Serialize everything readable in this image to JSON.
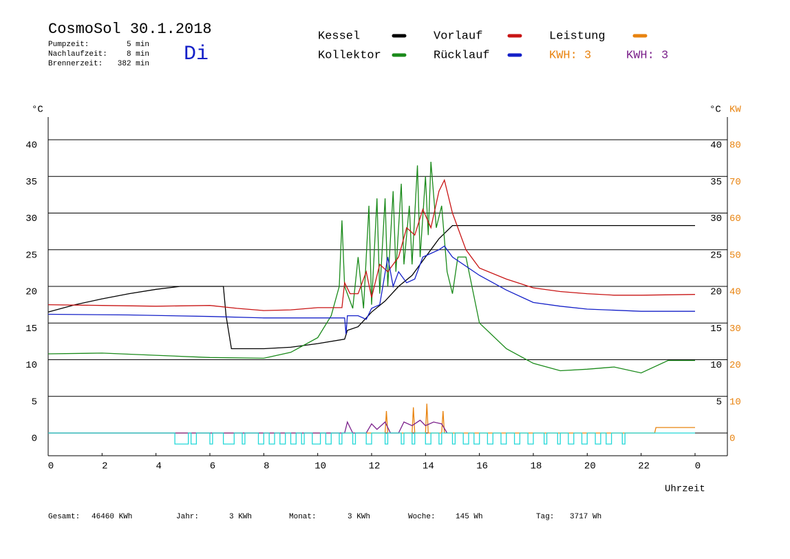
{
  "chart_data": {
    "type": "line",
    "title": "CosmoSol 30.1.2018",
    "day": "Di",
    "stats": [
      {
        "label": "Pumpzeit:",
        "value": "5 min"
      },
      {
        "label": "Nachlaufzeit:",
        "value": "8 min"
      },
      {
        "label": "Brennerzeit:",
        "value": "382 min"
      }
    ],
    "y_unit": "°C",
    "y2_unit": "KW",
    "x_label": "Uhrzeit",
    "kwh_labels": [
      {
        "text": "KWH: 3",
        "color": "#e8830f"
      },
      {
        "text": "KWH: 3",
        "color": "#7a1f8a"
      }
    ],
    "xlim": [
      0,
      25.2
    ],
    "xticks": [
      0,
      2,
      4,
      6,
      8,
      10,
      12,
      14,
      16,
      18,
      20,
      22,
      {
        "value": 24,
        "label": "0"
      }
    ],
    "ylim": [
      -3.1,
      43.1
    ],
    "yticks": [
      0,
      5,
      10,
      15,
      20,
      25,
      30,
      35,
      40
    ],
    "yticks_right": [
      5,
      10,
      15,
      20,
      25,
      30,
      35,
      40
    ],
    "y2lim": [
      -6.2,
      86.2
    ],
    "y2ticks": [
      0,
      10,
      20,
      30,
      40,
      50,
      60,
      70,
      80
    ],
    "y2color": "#e8830f",
    "grid": true,
    "series": [
      {
        "name": "Kessel",
        "color": "#000000",
        "x": [
          0,
          1,
          2,
          3,
          4,
          4.9,
          6.5,
          6.6,
          6.8,
          8,
          9,
          10,
          11,
          11.1,
          11.5,
          12,
          12.5,
          13,
          13.5,
          14,
          14.5,
          15,
          24
        ],
        "values": [
          16.5,
          17.5,
          18.3,
          19.0,
          19.6,
          20,
          20,
          16,
          11.5,
          11.5,
          11.7,
          12.2,
          12.8,
          14,
          14.5,
          16.5,
          18,
          20,
          21.5,
          24,
          26.5,
          28.3,
          28.3
        ]
      },
      {
        "name": "Kollektor",
        "color": "#1a8a1a",
        "x": [
          0,
          2,
          4,
          6,
          8,
          9,
          10,
          10.5,
          10.8,
          10.9,
          11,
          11.3,
          11.5,
          11.7,
          11.9,
          12,
          12.2,
          12.3,
          12.5,
          12.6,
          12.8,
          12.9,
          13.1,
          13.2,
          13.4,
          13.5,
          13.7,
          13.8,
          14,
          14.1,
          14.2,
          14.4,
          14.6,
          14.8,
          15,
          15.2,
          15.5,
          16,
          17,
          18,
          19,
          20,
          21,
          22,
          23,
          24
        ],
        "values": [
          10.8,
          10.9,
          10.6,
          10.3,
          10.2,
          11,
          13,
          16,
          20,
          29,
          20,
          17,
          24,
          17,
          31,
          17.5,
          32,
          19,
          32,
          20,
          33,
          22,
          34,
          23,
          31,
          23,
          36.5,
          24,
          35,
          27,
          37,
          28,
          31,
          22,
          19,
          24,
          24,
          15,
          11.5,
          9.5,
          8.5,
          8.7,
          9.0,
          8.2,
          9.9,
          9.9
        ]
      },
      {
        "name": "Vorlauf",
        "color": "#c81414",
        "x": [
          0,
          2,
          4,
          6,
          7,
          8,
          9,
          10,
          10.9,
          11,
          11.2,
          11.5,
          11.8,
          12,
          12.3,
          12.6,
          13,
          13.3,
          13.6,
          13.9,
          14.2,
          14.5,
          14.7,
          15,
          15.5,
          16,
          17,
          18,
          19,
          20,
          21,
          22,
          24
        ],
        "values": [
          17.5,
          17.4,
          17.3,
          17.4,
          17.0,
          16.7,
          16.8,
          17.1,
          17.1,
          20.5,
          19,
          19,
          22,
          18.5,
          23,
          22,
          24,
          28,
          27,
          30.5,
          28,
          33,
          34.5,
          30,
          25,
          22.5,
          21,
          19.8,
          19.3,
          19.0,
          18.8,
          18.8,
          18.9
        ]
      },
      {
        "name": "Rücklauf",
        "color": "#1420c8",
        "x": [
          0,
          3,
          6,
          8,
          10,
          11,
          11.05,
          11.1,
          11.5,
          11.8,
          12,
          12.3,
          12.6,
          12.8,
          13,
          13.3,
          13.6,
          13.9,
          14.2,
          14.5,
          14.7,
          15,
          16,
          17,
          18,
          19,
          20,
          22,
          24
        ],
        "values": [
          16.2,
          16.1,
          15.9,
          15.7,
          15.7,
          15.7,
          13.5,
          16,
          16,
          15.5,
          17,
          17.5,
          24,
          20,
          22,
          20.5,
          21,
          24,
          24.5,
          25,
          25.5,
          24,
          21.5,
          19.5,
          17.8,
          17.3,
          16.9,
          16.6,
          16.6
        ]
      },
      {
        "name": "Leistung",
        "color": "#e8830f",
        "axis": "y2",
        "x": [
          0,
          12.5,
          12.55,
          12.6,
          13.5,
          13.55,
          13.6,
          14,
          14.05,
          14.1,
          14.6,
          14.65,
          14.7,
          22.5,
          22.55,
          24
        ],
        "values": [
          0,
          0,
          6,
          0,
          0,
          7,
          0,
          0,
          8,
          0,
          0,
          6,
          0,
          0,
          1.5,
          1.5
        ]
      },
      {
        "color": "#7a1f8a",
        "axis": "y2",
        "x": [
          0,
          11,
          11.1,
          11.3,
          11.8,
          12,
          12.2,
          12.5,
          12.7,
          13,
          13.2,
          13.5,
          13.8,
          14,
          14.3,
          14.6,
          14.8
        ],
        "values": [
          0,
          0,
          3,
          0,
          0,
          2.5,
          1,
          3,
          0,
          0,
          3,
          2,
          3.5,
          2,
          3,
          2.5,
          0
        ]
      },
      {
        "color": "#20d8d8",
        "x": [
          0,
          4.7,
          4.7,
          5.2,
          5.2,
          5.3,
          5.3,
          5.5,
          5.5,
          6.0,
          6.0,
          6.1,
          6.1,
          6.5,
          6.5,
          6.9,
          6.9,
          7.2,
          7.2,
          7.3,
          7.3,
          7.8,
          7.8,
          8.0,
          8.0,
          8.2,
          8.2,
          8.4,
          8.4,
          8.6,
          8.6,
          8.8,
          8.8,
          9.0,
          9.0,
          9.2,
          9.2,
          9.4,
          9.4,
          9.5,
          9.5,
          9.8,
          9.8,
          10.1,
          10.1,
          10.3,
          10.3,
          10.5,
          10.5,
          10.8,
          10.8,
          10.9,
          10.9,
          11.3,
          11.3,
          11.4,
          11.4,
          11.8,
          11.8,
          12.0,
          12.0,
          12.5,
          12.5,
          12.6,
          12.6,
          13.1,
          13.1,
          13.2,
          13.2,
          13.5,
          13.5,
          13.6,
          13.6,
          14.0,
          14.0,
          14.2,
          14.2,
          14.5,
          14.5,
          14.6,
          14.6,
          15.0,
          15.0,
          15.1,
          15.1,
          15.4,
          15.4,
          15.6,
          15.6,
          15.8,
          15.8,
          16.0,
          16.0,
          16.3,
          16.3,
          16.5,
          16.5,
          16.8,
          16.8,
          17.0,
          17.0,
          17.3,
          17.3,
          17.5,
          17.5,
          17.8,
          17.8,
          18.0,
          18.0,
          18.4,
          18.4,
          18.5,
          18.5,
          18.9,
          18.9,
          19.0,
          19.0,
          19.3,
          19.3,
          19.5,
          19.5,
          19.8,
          19.8,
          20.0,
          20.0,
          20.3,
          20.3,
          20.5,
          20.5,
          20.7,
          20.7,
          20.9,
          20.9,
          21.3,
          21.3,
          21.4,
          21.4,
          24
        ],
        "values": [
          0,
          0,
          -1.5,
          -1.5,
          0,
          0,
          -1.5,
          -1.5,
          0,
          0,
          -1.5,
          -1.5,
          0,
          0,
          -1.5,
          -1.5,
          0,
          0,
          -1.5,
          -1.5,
          0,
          0,
          -1.5,
          -1.5,
          0,
          0,
          -1.5,
          -1.5,
          0,
          0,
          -1.5,
          -1.5,
          0,
          0,
          -1.5,
          -1.5,
          0,
          0,
          -1.5,
          -1.5,
          0,
          0,
          -1.5,
          -1.5,
          0,
          0,
          -1.5,
          -1.5,
          0,
          0,
          -1.5,
          -1.5,
          0,
          0,
          -1.5,
          -1.5,
          0,
          0,
          -1.5,
          -1.5,
          0,
          0,
          -1.5,
          -1.5,
          0,
          0,
          -1.5,
          -1.5,
          0,
          0,
          -1.5,
          -1.5,
          0,
          0,
          -1.5,
          -1.5,
          0,
          0,
          -1.5,
          -1.5,
          0,
          0,
          -1.5,
          -1.5,
          0,
          0,
          -1.5,
          -1.5,
          0,
          0,
          -1.5,
          -1.5,
          0,
          0,
          -1.5,
          -1.5,
          0,
          0,
          -1.5,
          -1.5,
          0,
          0,
          -1.5,
          -1.5,
          0,
          0,
          -1.5,
          -1.5,
          0,
          0,
          -1.5,
          -1.5,
          0,
          0,
          -1.5,
          -1.5,
          0,
          0,
          -1.5,
          -1.5,
          0,
          0,
          -1.5,
          -1.5,
          0,
          0,
          -1.5,
          -1.5,
          0,
          0,
          -1.5,
          -1.5,
          0,
          0,
          -1.5,
          -1.5,
          0,
          0
        ]
      }
    ],
    "footer": [
      {
        "label": "Gesamt:",
        "value": "46460 KWh"
      },
      {
        "label": "Jahr:",
        "value": "3 KWh"
      },
      {
        "label": "Monat:",
        "value": "3 KWh"
      },
      {
        "label": "Woche:",
        "value": "145 Wh"
      },
      {
        "label": "Tag:",
        "value": "3717 Wh"
      }
    ]
  }
}
